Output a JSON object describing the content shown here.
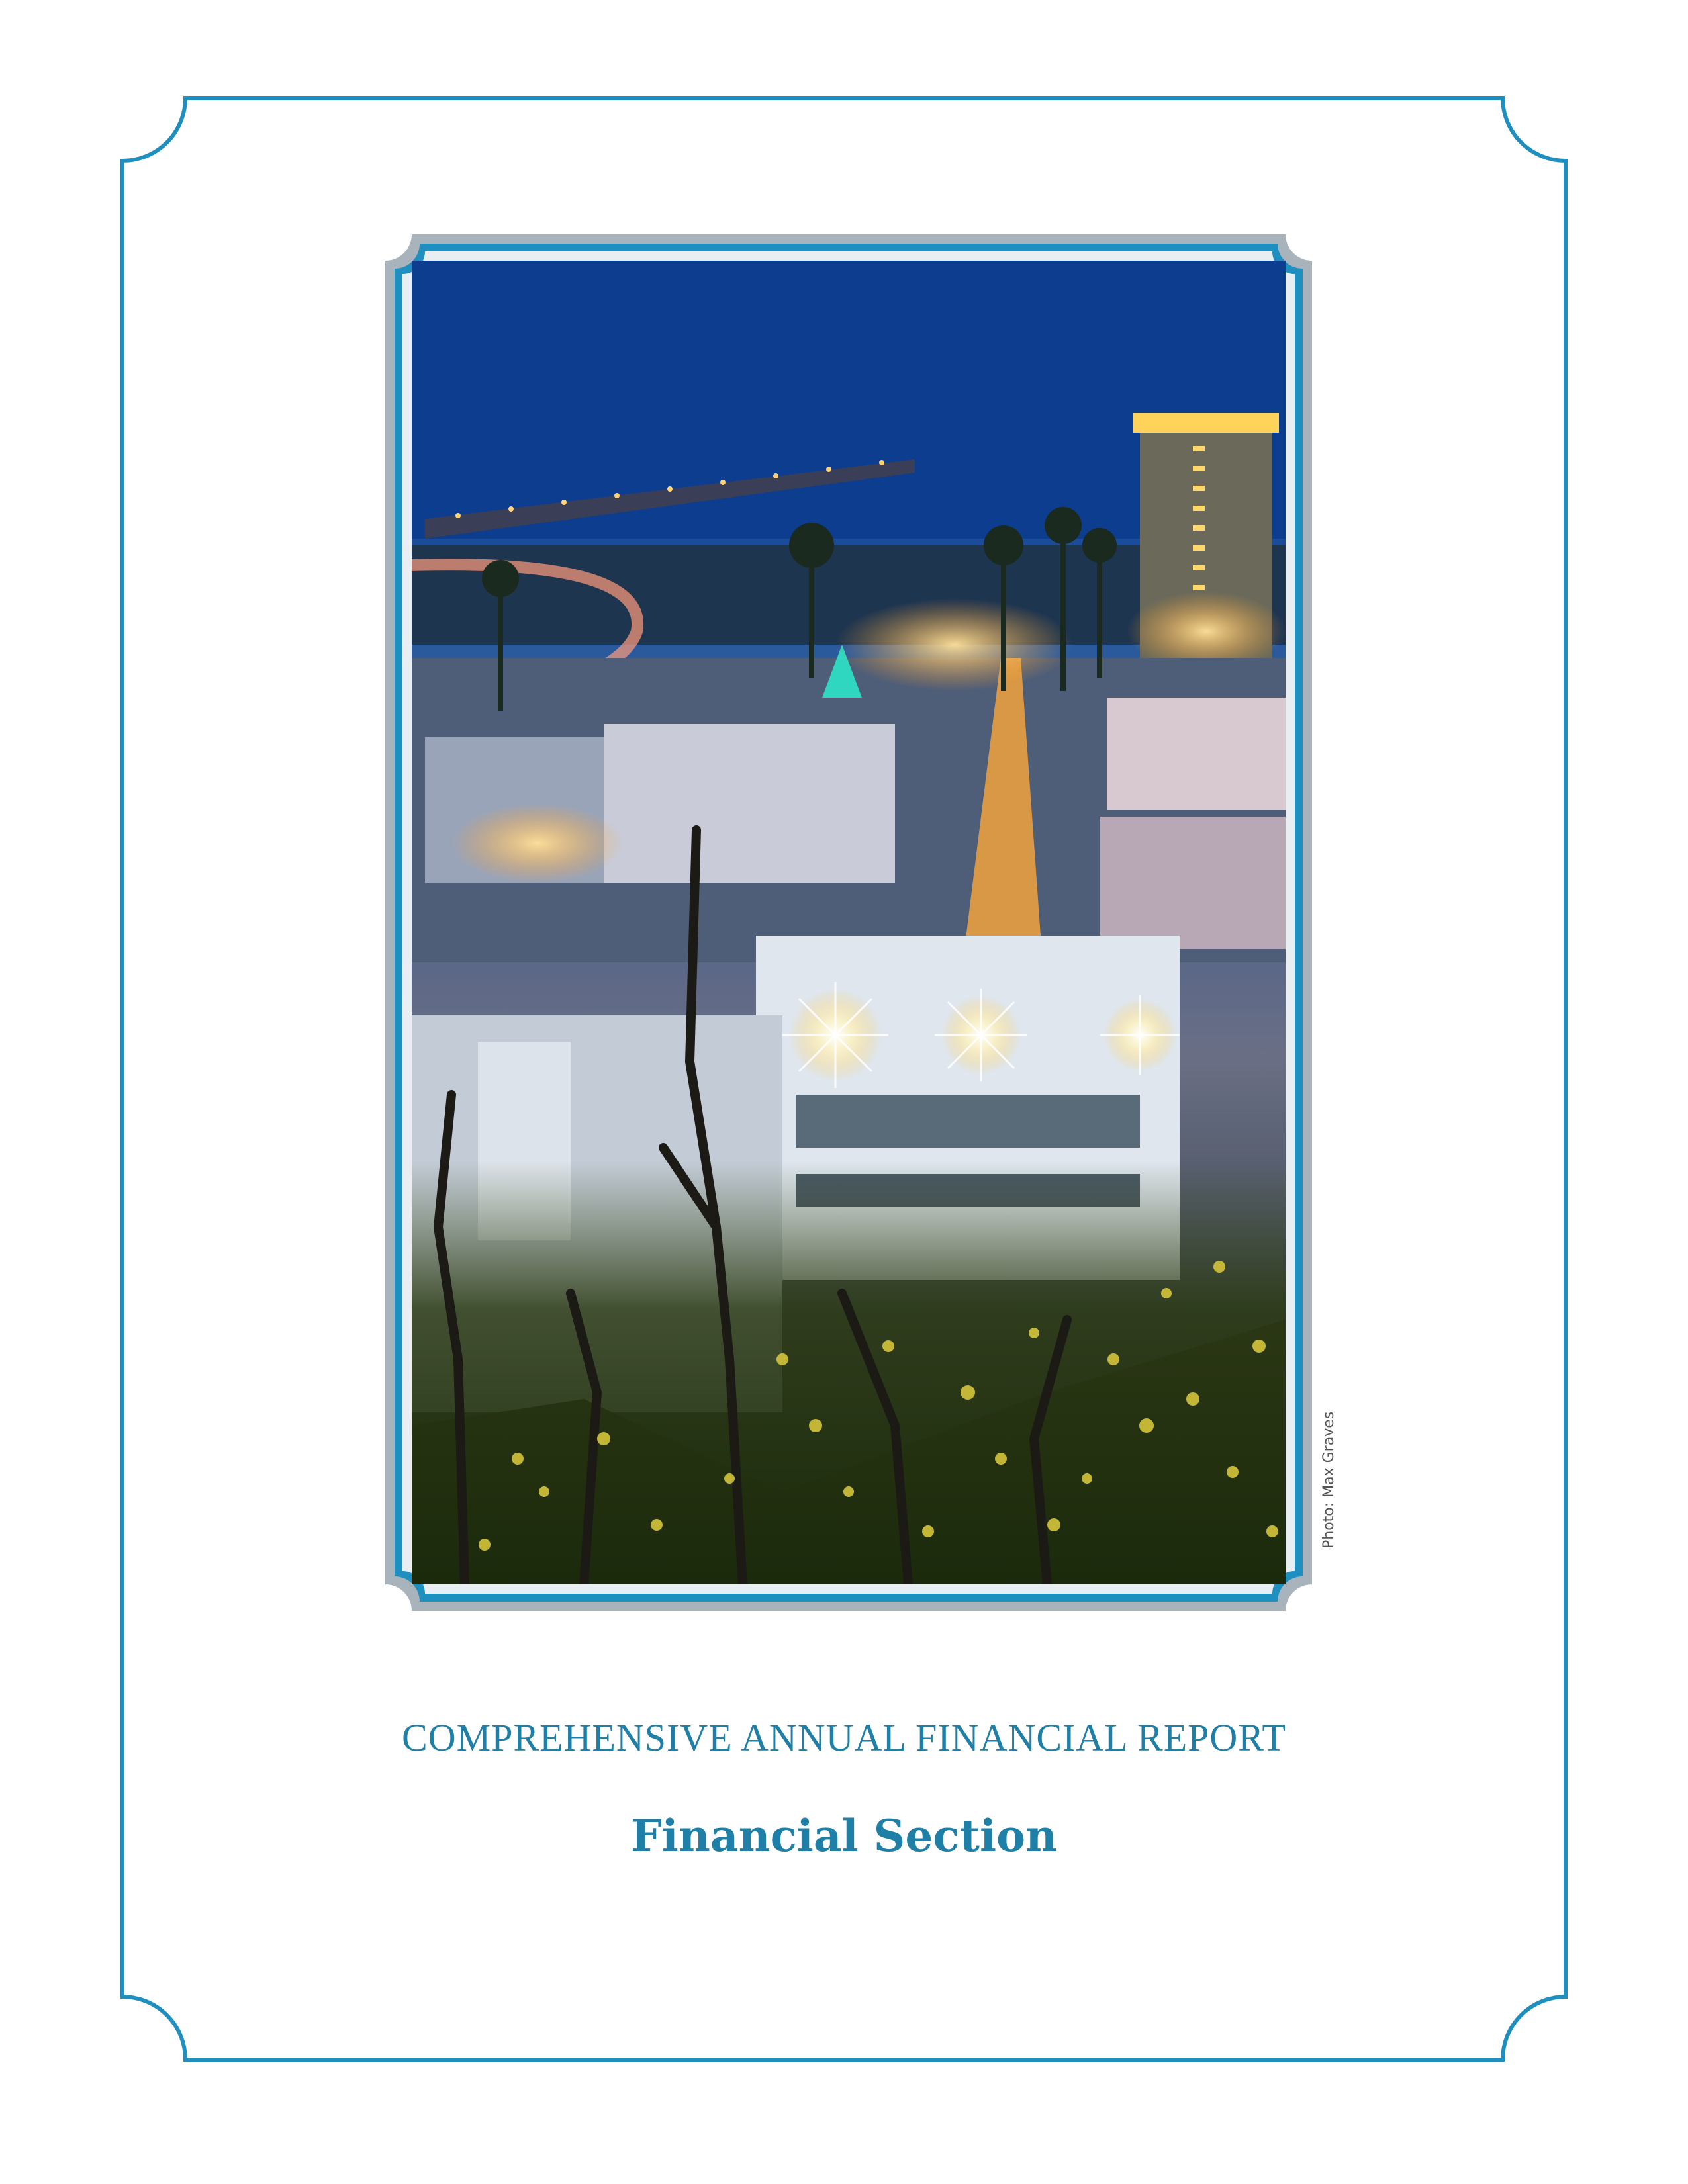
{
  "cover": {
    "photo_credit": "Photo: Max Graves",
    "report_title": "COMPREHENSIVE ANNUAL FINANCIAL REPORT",
    "section_title": "Financial Section"
  },
  "colors": {
    "accent": "#1f8fbf",
    "frame_gray": "#a9b3bb",
    "title_text": "#1f7fa6"
  },
  "photo": {
    "description_icon": "city-night-photo"
  }
}
